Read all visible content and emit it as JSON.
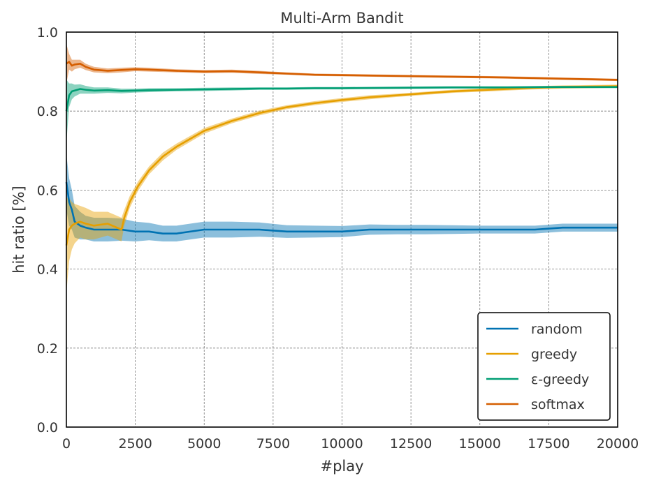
{
  "chart_data": {
    "type": "line",
    "title": "Multi-Arm Bandit",
    "xlabel": "#play",
    "ylabel": "hit ratio [%]",
    "xlim": [
      0,
      20000
    ],
    "ylim": [
      0.0,
      1.0
    ],
    "xticks": [
      "0",
      "2500",
      "5000",
      "7500",
      "10000",
      "12500",
      "15000",
      "17500",
      "20000"
    ],
    "yticks": [
      "0.0",
      "0.2",
      "0.4",
      "0.6",
      "0.8",
      "1.0"
    ],
    "grid": true,
    "legend_position": "bottom-right",
    "series": [
      {
        "name": "random",
        "color": "#0072b2",
        "x": [
          0,
          100,
          200,
          300,
          500,
          700,
          1000,
          1500,
          2000,
          2500,
          3000,
          3500,
          4000,
          5000,
          6000,
          7000,
          8000,
          9000,
          10000,
          11000,
          12000,
          13000,
          14000,
          15000,
          16000,
          17000,
          18000,
          19000,
          20000
        ],
        "y": [
          0.62,
          0.57,
          0.55,
          0.52,
          0.51,
          0.505,
          0.5,
          0.5,
          0.5,
          0.495,
          0.495,
          0.49,
          0.49,
          0.5,
          0.5,
          0.5,
          0.495,
          0.495,
          0.495,
          0.5,
          0.5,
          0.5,
          0.5,
          0.5,
          0.5,
          0.5,
          0.505,
          0.505,
          0.505
        ],
        "band": [
          0.07,
          0.06,
          0.05,
          0.04,
          0.035,
          0.03,
          0.03,
          0.03,
          0.028,
          0.025,
          0.022,
          0.02,
          0.02,
          0.02,
          0.02,
          0.018,
          0.016,
          0.015,
          0.014,
          0.013,
          0.012,
          0.012,
          0.011,
          0.01,
          0.01,
          0.01,
          0.01,
          0.01,
          0.01
        ]
      },
      {
        "name": "greedy",
        "color": "#e69f00",
        "x": [
          0,
          100,
          200,
          300,
          500,
          700,
          1000,
          1500,
          2000,
          2100,
          2300,
          2600,
          3000,
          3500,
          4000,
          5000,
          6000,
          7000,
          8000,
          9000,
          10000,
          11000,
          12000,
          13000,
          14000,
          15000,
          16000,
          17000,
          18000,
          19000,
          20000
        ],
        "y": [
          0.46,
          0.5,
          0.51,
          0.515,
          0.52,
          0.515,
          0.51,
          0.515,
          0.5,
          0.53,
          0.57,
          0.61,
          0.65,
          0.685,
          0.71,
          0.75,
          0.775,
          0.795,
          0.81,
          0.82,
          0.828,
          0.835,
          0.84,
          0.845,
          0.85,
          0.853,
          0.856,
          0.859,
          0.861,
          0.862,
          0.863
        ],
        "band": [
          0.12,
          0.08,
          0.06,
          0.05,
          0.04,
          0.04,
          0.035,
          0.03,
          0.03,
          0.02,
          0.015,
          0.012,
          0.01,
          0.01,
          0.008,
          0.007,
          0.006,
          0.006,
          0.005,
          0.005,
          0.005,
          0.005,
          0.004,
          0.004,
          0.004,
          0.004,
          0.004,
          0.004,
          0.004,
          0.004,
          0.004
        ]
      },
      {
        "name": "ε-greedy",
        "color": "#009e73",
        "x": [
          0,
          100,
          200,
          300,
          500,
          700,
          1000,
          1500,
          2000,
          2500,
          3000,
          4000,
          5000,
          6000,
          7000,
          8000,
          9000,
          10000,
          12000,
          14000,
          16000,
          18000,
          20000
        ],
        "y": [
          0.8,
          0.84,
          0.85,
          0.852,
          0.856,
          0.854,
          0.852,
          0.853,
          0.851,
          0.852,
          0.853,
          0.854,
          0.855,
          0.856,
          0.857,
          0.857,
          0.858,
          0.858,
          0.859,
          0.86,
          0.86,
          0.861,
          0.861
        ],
        "band": [
          0.08,
          0.03,
          0.02,
          0.015,
          0.012,
          0.01,
          0.008,
          0.007,
          0.006,
          0.005,
          0.005,
          0.004,
          0.004,
          0.004,
          0.003,
          0.003,
          0.003,
          0.003,
          0.003,
          0.003,
          0.003,
          0.003,
          0.003
        ]
      },
      {
        "name": "softmax",
        "color": "#d55e00",
        "x": [
          0,
          100,
          200,
          300,
          500,
          700,
          1000,
          1500,
          2000,
          2500,
          3000,
          4000,
          5000,
          6000,
          7000,
          8000,
          9000,
          10000,
          12000,
          14000,
          16000,
          18000,
          20000
        ],
        "y": [
          0.92,
          0.925,
          0.915,
          0.918,
          0.92,
          0.912,
          0.905,
          0.902,
          0.904,
          0.906,
          0.905,
          0.902,
          0.9,
          0.901,
          0.898,
          0.895,
          0.892,
          0.891,
          0.889,
          0.887,
          0.885,
          0.882,
          0.879
        ],
        "band": [
          0.05,
          0.02,
          0.015,
          0.012,
          0.01,
          0.008,
          0.007,
          0.006,
          0.006,
          0.005,
          0.005,
          0.004,
          0.004,
          0.004,
          0.004,
          0.003,
          0.003,
          0.003,
          0.003,
          0.003,
          0.003,
          0.003,
          0.003
        ]
      }
    ]
  }
}
